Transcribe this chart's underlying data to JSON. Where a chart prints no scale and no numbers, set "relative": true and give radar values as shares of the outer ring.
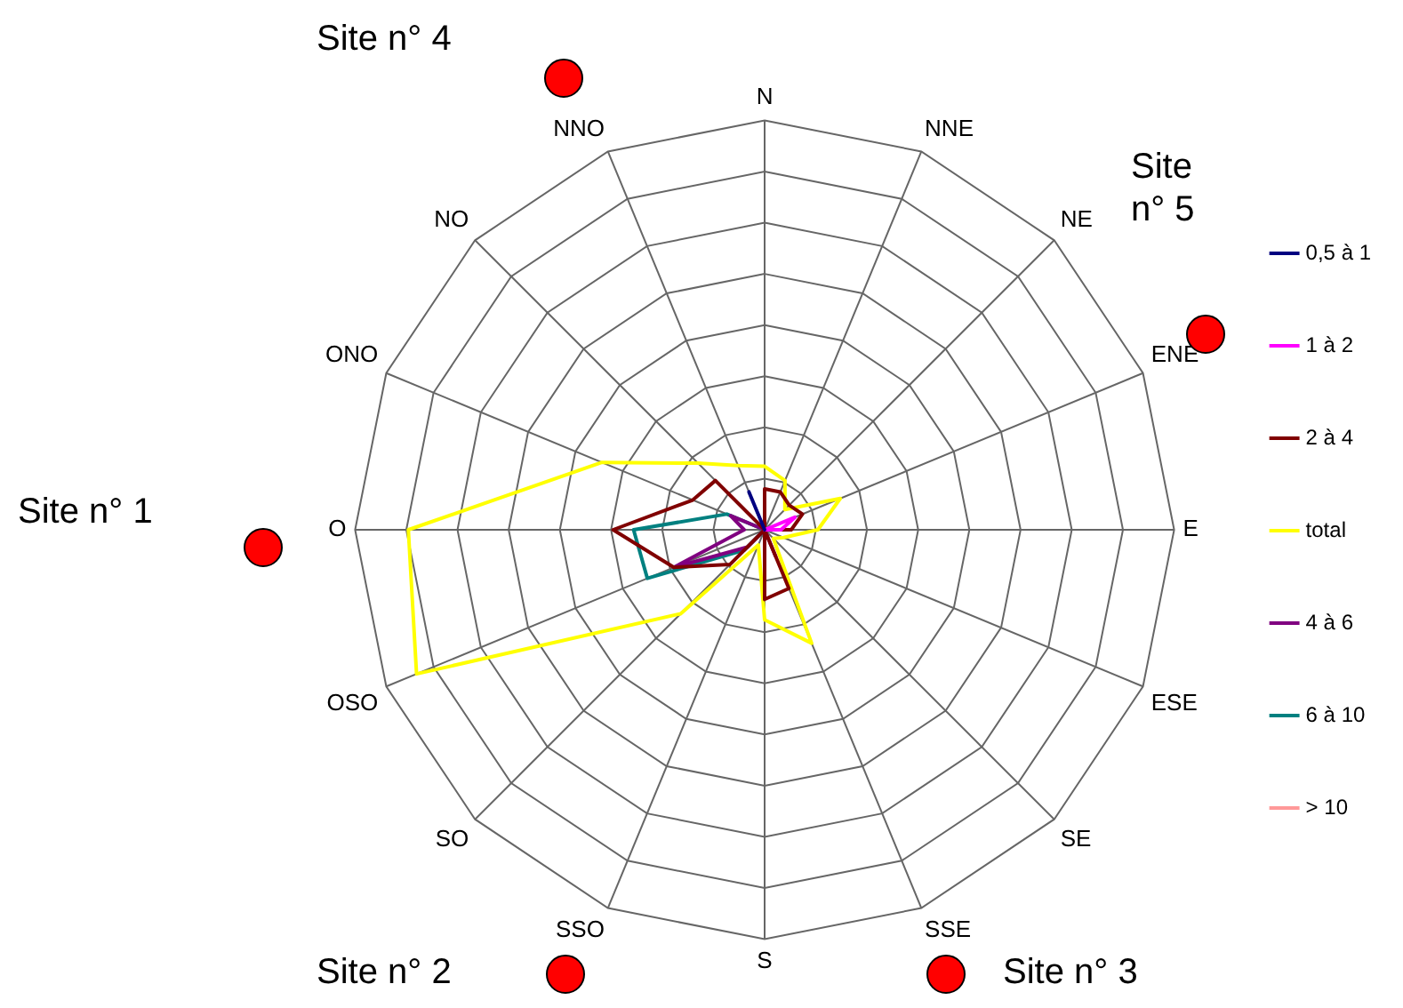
{
  "chart_data": {
    "type": "radar",
    "relative": true,
    "categories": [
      "N",
      "NNE",
      "NE",
      "ENE",
      "E",
      "ESE",
      "SE",
      "SSE",
      "S",
      "SSO",
      "SO",
      "OSO",
      "O",
      "ONO",
      "NO",
      "NNO"
    ],
    "series": [
      {
        "name": "0,5 à 1",
        "color": "#000080",
        "values": [
          0,
          0,
          0,
          0,
          0,
          0,
          0,
          0,
          0,
          0,
          0,
          0,
          0,
          0,
          0,
          0.1
        ]
      },
      {
        "name": "1 à 2",
        "color": "#ff00ff",
        "values": [
          0,
          0,
          0,
          0.08,
          0.04,
          0,
          0,
          0,
          0,
          0,
          0,
          0,
          0,
          0,
          0,
          0
        ]
      },
      {
        "name": "2 à 4",
        "color": "#800000",
        "values": [
          0.1,
          0.1,
          0.085,
          0.1,
          0.065,
          0,
          0,
          0.155,
          0.17,
          0,
          0.12,
          0.24,
          0.37,
          0.19,
          0.17,
          0
        ]
      },
      {
        "name": "total",
        "color": "#ffff00",
        "values": [
          0.155,
          0.13,
          0.07,
          0.2,
          0.13,
          0.05,
          0.03,
          0.3,
          0.22,
          0.04,
          0.29,
          0.92,
          0.87,
          0.43,
          0.23,
          0.17
        ]
      },
      {
        "name": "4 à 6",
        "color": "#800080",
        "values": [
          0,
          0,
          0,
          0,
          0,
          0,
          0,
          0.07,
          0,
          0,
          0.06,
          0.24,
          0.05,
          0.09,
          0,
          0
        ]
      },
      {
        "name": "6 à 10",
        "color": "#008080",
        "values": [
          0,
          0,
          0,
          0,
          0,
          0,
          0,
          0,
          0,
          0,
          0.07,
          0.31,
          0.32,
          0.1,
          0,
          0
        ]
      },
      {
        "name": "> 10",
        "color": "#ff9999",
        "values": [
          null,
          null,
          null,
          null,
          null,
          null,
          null,
          null,
          null,
          null,
          null,
          null,
          null,
          null,
          null,
          null
        ]
      }
    ],
    "legend": "right",
    "marker": "none",
    "line_style": "solid",
    "grid": true,
    "annotations": [
      "Site n° 4",
      "Site n° 5",
      "Site n° 1",
      "Site n° 2",
      "Site n° 3"
    ]
  }
}
